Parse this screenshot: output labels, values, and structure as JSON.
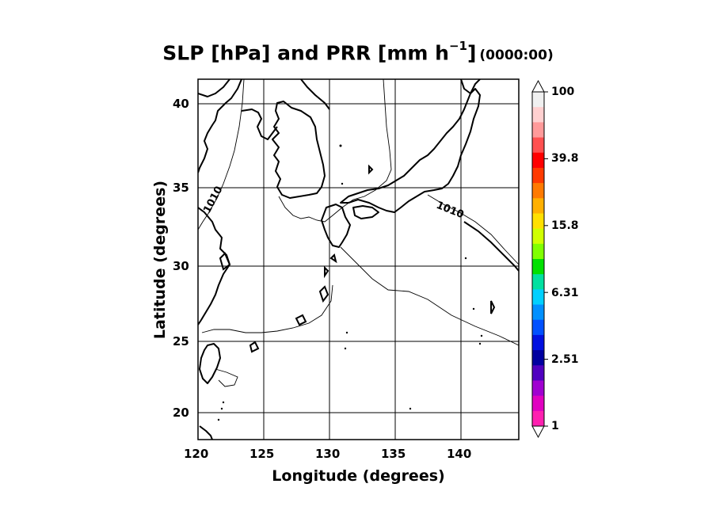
{
  "title": {
    "main": "SLP [hPa] and PRR [mm h",
    "sup": "−1",
    "close": "]",
    "time": "(0000:00)"
  },
  "axes": {
    "xlabel": "Longitude (degrees)",
    "ylabel": "Latitude  (degrees)",
    "xlim": [
      120,
      144.5
    ],
    "ylim": [
      18.2,
      41.6
    ],
    "xticks": [
      "120",
      "125",
      "130",
      "135",
      "140"
    ],
    "yticks": [
      "20",
      "25",
      "30",
      "35",
      "40"
    ],
    "gridlines": "on"
  },
  "contour_labels": [
    "1010",
    "1010"
  ],
  "colorbar": {
    "label_values": [
      "100",
      "39.8",
      "15.8",
      "6.31",
      "2.51",
      "1"
    ],
    "colors": [
      "#f0f0f0",
      "#ffd0d0",
      "#ff9a9a",
      "#ff5050",
      "#ff0000",
      "#ff3a00",
      "#ff7a00",
      "#ffb000",
      "#ffe000",
      "#d0ff00",
      "#80ff00",
      "#00e000",
      "#00e0a0",
      "#00d0ff",
      "#0090ff",
      "#0050ff",
      "#0010e0",
      "#0000a0",
      "#5000c0",
      "#a000d0",
      "#e000c0",
      "#ff20b0"
    ],
    "extend": "both"
  },
  "style": {
    "grid_color": "#000000",
    "coast_color": "#000000",
    "background": "#ffffff"
  }
}
